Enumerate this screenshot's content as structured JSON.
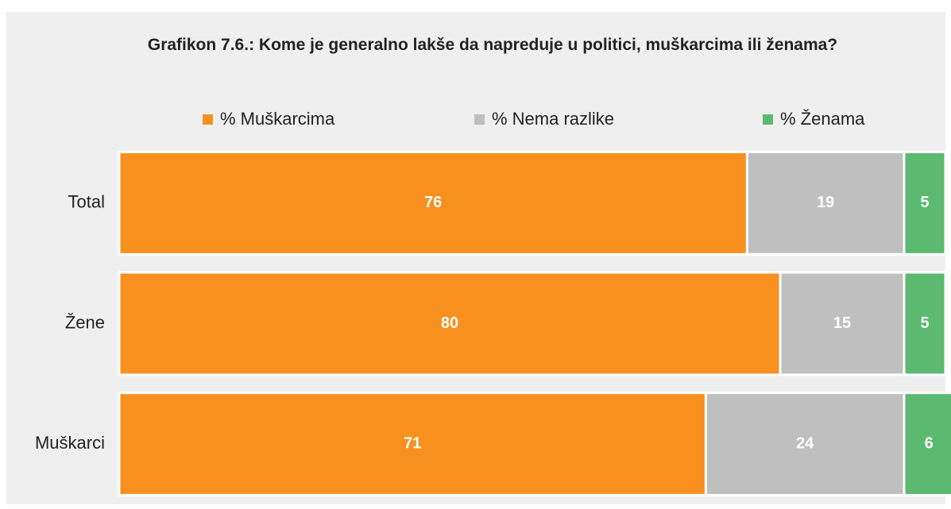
{
  "chart_data": {
    "type": "stacked_bar_horizontal",
    "title": "Grafikon 7.6.: Kome je generalno lakše da napreduje u politici, muškarcima ili ženama?",
    "categories": [
      "Total",
      "Žene",
      "Muškarci"
    ],
    "series": [
      {
        "name": "% Muškarcima",
        "color": "#f7901e",
        "values": [
          76,
          80,
          71
        ]
      },
      {
        "name": "% Nema razlike",
        "color": "#bfbfbf",
        "values": [
          19,
          15,
          24
        ]
      },
      {
        "name": "% Ženama",
        "color": "#5cb970",
        "values": [
          5,
          5,
          6
        ]
      }
    ],
    "xlim": [
      0,
      100
    ],
    "legend": "top"
  }
}
